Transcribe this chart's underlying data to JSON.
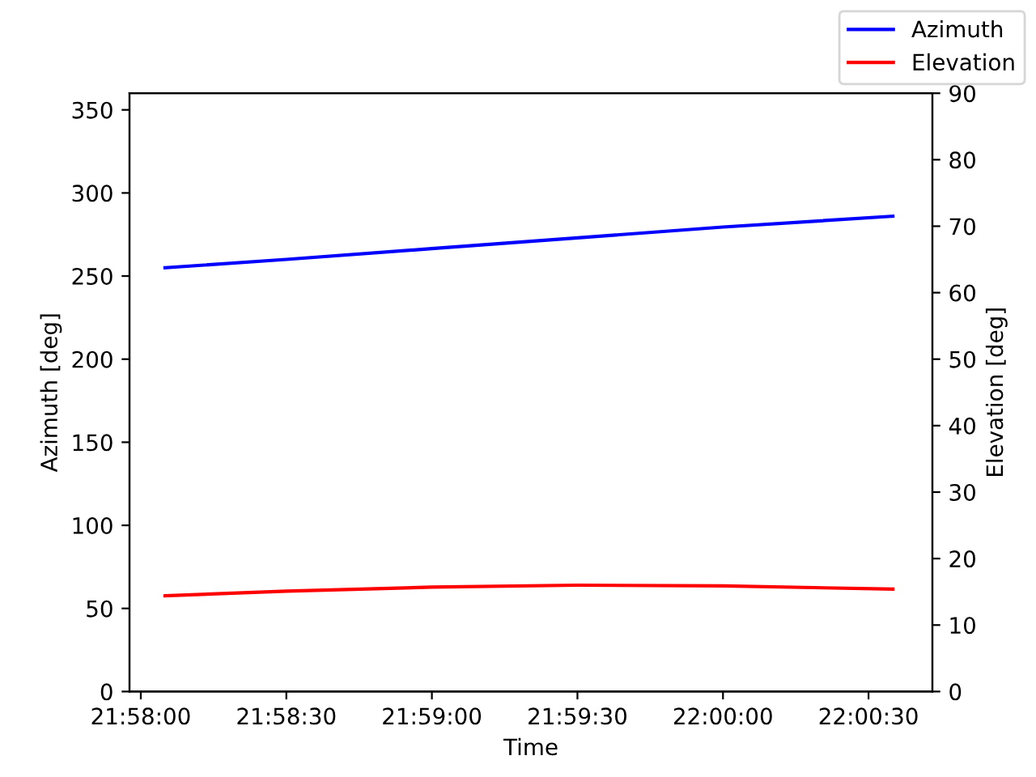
{
  "chart_data": {
    "type": "line",
    "xlabel": "Time",
    "ylabel": "Azimuth [deg]",
    "y2label": "Elevation [deg]",
    "xlim": [
      21.96602,
      22.01199
    ],
    "xticks": [
      {
        "value": 21.966667,
        "label": "21:58:00"
      },
      {
        "value": 21.975,
        "label": "21:58:30"
      },
      {
        "value": 21.983333,
        "label": "21:59:00"
      },
      {
        "value": 21.991667,
        "label": "21:59:30"
      },
      {
        "value": 22.0,
        "label": "22:00:00"
      },
      {
        "value": 22.008333,
        "label": "22:00:30"
      }
    ],
    "ylim": [
      0,
      360
    ],
    "yticks": [
      0,
      50,
      100,
      150,
      200,
      250,
      300,
      350
    ],
    "y2lim": [
      0,
      90
    ],
    "y2ticks": [
      0,
      10,
      20,
      30,
      40,
      50,
      60,
      70,
      80,
      90
    ],
    "grid": false,
    "legend": "top right",
    "marker": "none",
    "line_style": "solid",
    "series": [
      {
        "name": "Azimuth",
        "color": "#0000ff",
        "x": [
          21.968056,
          21.975,
          21.983333,
          21.991667,
          22.0,
          22.009722
        ],
        "values": [
          255,
          260,
          266.5,
          273,
          279.5,
          286
        ]
      },
      {
        "name": "Elevation",
        "color": "#ff0000",
        "axis": "y2",
        "x": [
          21.968056,
          21.975,
          21.983333,
          21.991667,
          22.0,
          22.009722
        ],
        "values": [
          14.4,
          15.1,
          15.7,
          16.0,
          15.9,
          15.4
        ]
      }
    ]
  }
}
